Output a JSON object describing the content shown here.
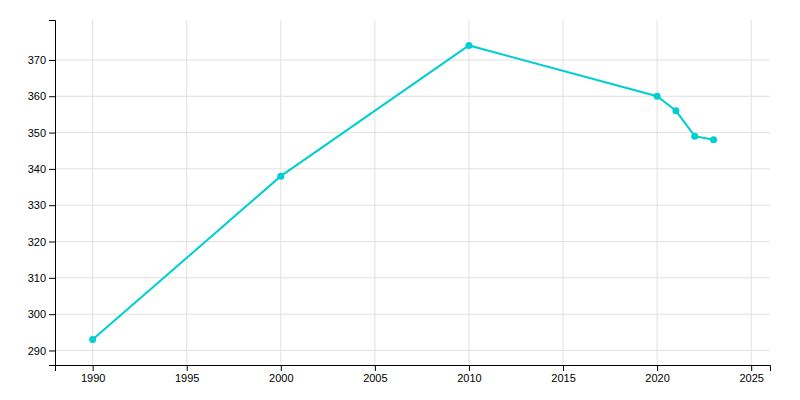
{
  "chart_data": {
    "type": "line",
    "x": [
      1990,
      2000,
      2010,
      2020,
      2021,
      2022,
      2023
    ],
    "values": [
      293,
      338,
      374,
      360,
      356,
      349,
      348
    ],
    "color": "#00CED1",
    "marker": "circle",
    "xlim": [
      1988,
      2026
    ],
    "ylim": [
      286,
      381
    ],
    "xticks": [
      1990,
      1995,
      2000,
      2005,
      2010,
      2015,
      2020,
      2025
    ],
    "yticks": [
      290,
      300,
      310,
      320,
      330,
      340,
      350,
      360,
      370
    ],
    "grid": true
  }
}
